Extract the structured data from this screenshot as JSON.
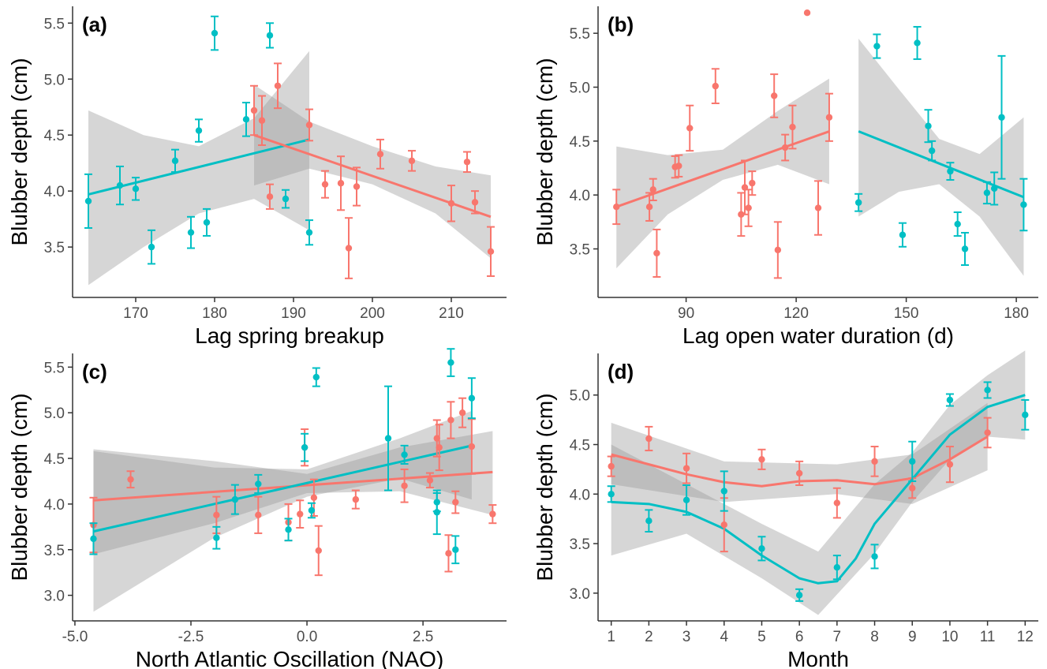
{
  "colors": {
    "red": "#f8766d",
    "teal": "#00bfc4",
    "band": "#999999",
    "axis": "#333333"
  },
  "chart_data": [
    {
      "id": "a",
      "type": "scatter",
      "panel_label": "(a)",
      "xlabel": "Lag spring breakup",
      "ylabel": "Blubber depth (cm)",
      "xlim": [
        162,
        217
      ],
      "ylim": [
        3.05,
        5.65
      ],
      "xticks": [
        170,
        180,
        190,
        200,
        210
      ],
      "yticks": [
        3.5,
        4.0,
        4.5,
        5.0,
        5.5
      ],
      "grid": false,
      "series": [
        {
          "color": "teal",
          "points": [
            [
              164,
              3.91,
              0.24
            ],
            [
              168,
              4.05,
              0.17
            ],
            [
              170,
              4.02,
              0.1
            ],
            [
              172,
              3.5,
              0.15
            ],
            [
              175,
              4.27,
              0.1
            ],
            [
              177,
              3.63,
              0.14
            ],
            [
              178,
              4.54,
              0.1
            ],
            [
              179,
              3.72,
              0.12
            ],
            [
              180,
              5.41,
              0.15
            ],
            [
              184,
              4.64,
              0.15
            ],
            [
              187,
              5.39,
              0.11
            ],
            [
              189,
              3.93,
              0.08
            ],
            [
              192,
              3.63,
              0.11
            ]
          ],
          "fit": [
            [
              164,
              3.97
            ],
            [
              192,
              4.46
            ]
          ],
          "band": [
            [
              164,
              3.16,
              4.72
            ],
            [
              171,
              3.5,
              4.5
            ],
            [
              178,
              3.8,
              4.4
            ],
            [
              185,
              3.93,
              4.65
            ],
            [
              192,
              3.65,
              5.25
            ]
          ]
        },
        {
          "color": "red",
          "points": [
            [
              185,
              4.72,
              0.22
            ],
            [
              186,
              4.63,
              0.22
            ],
            [
              187,
              3.95,
              0.11
            ],
            [
              188,
              4.94,
              0.2
            ],
            [
              192,
              4.59,
              0.14
            ],
            [
              194,
              4.06,
              0.12
            ],
            [
              196,
              4.07,
              0.24
            ],
            [
              197,
              3.49,
              0.27
            ],
            [
              198,
              4.04,
              0.17
            ],
            [
              201,
              4.33,
              0.13
            ],
            [
              205,
              4.27,
              0.09
            ],
            [
              210,
              3.89,
              0.16
            ],
            [
              212,
              4.26,
              0.09
            ],
            [
              213,
              3.9,
              0.1
            ],
            [
              215,
              3.46,
              0.22
            ]
          ],
          "fit": [
            [
              185,
              4.5
            ],
            [
              215,
              3.77
            ]
          ],
          "band": [
            [
              185,
              4.05,
              4.95
            ],
            [
              192,
              4.2,
              4.62
            ],
            [
              200,
              4.06,
              4.4
            ],
            [
              208,
              3.8,
              4.22
            ],
            [
              215,
              3.4,
              4.14
            ]
          ]
        }
      ]
    },
    {
      "id": "b",
      "type": "scatter",
      "panel_label": "(b)",
      "xlabel": "Lag open water duration (d)",
      "ylabel": "Blubber depth (cm)",
      "xlim": [
        66,
        186
      ],
      "ylim": [
        3.05,
        5.75
      ],
      "xticks": [
        90,
        120,
        150,
        180
      ],
      "yticks": [
        3.5,
        4.0,
        4.5,
        5.0,
        5.5
      ],
      "grid": false,
      "series": [
        {
          "color": "red",
          "points": [
            [
              71,
              3.89,
              0.16
            ],
            [
              80,
              3.89,
              0.13
            ],
            [
              81,
              4.05,
              0.1
            ],
            [
              82,
              3.46,
              0.22
            ],
            [
              87,
              4.26,
              0.1
            ],
            [
              88,
              4.27,
              0.1
            ],
            [
              91,
              4.62,
              0.21
            ],
            [
              98,
              5.01,
              0.16
            ],
            [
              105,
              3.82,
              0.2
            ],
            [
              106,
              4.07,
              0.25
            ],
            [
              107,
              3.88,
              0.17
            ],
            [
              108,
              4.11,
              0.11
            ],
            [
              114,
              4.92,
              0.2
            ],
            [
              115,
              3.49,
              0.26
            ],
            [
              117,
              4.44,
              0.12
            ],
            [
              119,
              4.63,
              0.2
            ],
            [
              123,
              5.69,
              0
            ],
            [
              126,
              3.88,
              0.25
            ],
            [
              129,
              4.72,
              0.22
            ]
          ],
          "fit": [
            [
              71,
              3.89
            ],
            [
              129,
              4.59
            ]
          ],
          "band": [
            [
              71,
              3.32,
              4.45
            ],
            [
              85,
              3.82,
              4.37
            ],
            [
              100,
              4.14,
              4.42
            ],
            [
              115,
              4.28,
              4.78
            ],
            [
              129,
              4.1,
              5.08
            ]
          ]
        },
        {
          "color": "teal",
          "points": [
            [
              137,
              3.93,
              0.08
            ],
            [
              142,
              5.38,
              0.11
            ],
            [
              149,
              3.63,
              0.11
            ],
            [
              153,
              5.41,
              0.15
            ],
            [
              156,
              4.64,
              0.15
            ],
            [
              157,
              4.41,
              0.09
            ],
            [
              162,
              4.22,
              0.08
            ],
            [
              164,
              3.73,
              0.11
            ],
            [
              166,
              3.5,
              0.15
            ],
            [
              172,
              4.02,
              0.1
            ],
            [
              174,
              4.06,
              0.15
            ],
            [
              176,
              4.72,
              0.57
            ],
            [
              182,
              3.91,
              0.24
            ]
          ],
          "fit": [
            [
              137,
              4.59
            ],
            [
              182,
              3.98
            ]
          ],
          "band": [
            [
              137,
              3.8,
              5.45
            ],
            [
              148,
              4.03,
              4.98
            ],
            [
              159,
              4.1,
              4.52
            ],
            [
              170,
              3.8,
              4.38
            ],
            [
              182,
              3.25,
              4.72
            ]
          ]
        }
      ]
    },
    {
      "id": "c",
      "type": "scatter",
      "panel_label": "(c)",
      "xlabel": "North Atlantic Oscillation (NAO)",
      "ylabel": "Blubber depth (cm)",
      "xlim": [
        -5.05,
        4.3
      ],
      "ylim": [
        2.72,
        5.65
      ],
      "xticks": [
        -5.0,
        -2.5,
        0.0,
        2.5
      ],
      "yticks": [
        3.0,
        3.5,
        4.0,
        4.5,
        5.0,
        5.5
      ],
      "grid": false,
      "series": [
        {
          "color": "red",
          "points": [
            [
              -4.6,
              3.77,
              0.3
            ],
            [
              -3.8,
              4.27,
              0.09
            ],
            [
              -1.95,
              3.88,
              0.2
            ],
            [
              -1.05,
              3.88,
              0.2
            ],
            [
              -0.4,
              3.8,
              0.2
            ],
            [
              -0.15,
              3.89,
              0.15
            ],
            [
              -0.05,
              4.62,
              0.2
            ],
            [
              0.15,
              4.07,
              0.2
            ],
            [
              0.25,
              3.49,
              0.27
            ],
            [
              1.05,
              4.05,
              0.1
            ],
            [
              2.1,
              4.2,
              0.18
            ],
            [
              2.65,
              4.26,
              0.08
            ],
            [
              2.8,
              4.72,
              0.2
            ],
            [
              2.85,
              4.62,
              0.25
            ],
            [
              3.05,
              3.46,
              0.2
            ],
            [
              3.1,
              4.92,
              0.2
            ],
            [
              3.2,
              4.02,
              0.12
            ],
            [
              3.35,
              5.0,
              0.16
            ],
            [
              3.55,
              4.63,
              0.3
            ],
            [
              4.0,
              3.89,
              0.1
            ]
          ],
          "fit": [
            [
              -4.6,
              4.04
            ],
            [
              4.0,
              4.35
            ]
          ],
          "band": [
            [
              -4.6,
              3.45,
              4.6
            ],
            [
              -2.0,
              3.79,
              4.47
            ],
            [
              0.0,
              4.12,
              4.33
            ],
            [
              2.0,
              4.14,
              4.62
            ],
            [
              4.0,
              3.88,
              4.8
            ]
          ]
        },
        {
          "color": "teal",
          "points": [
            [
              -4.6,
              3.62,
              0.17
            ],
            [
              -1.95,
              3.63,
              0.12
            ],
            [
              -1.55,
              4.05,
              0.16
            ],
            [
              -1.05,
              4.22,
              0.1
            ],
            [
              -0.4,
              3.72,
              0.12
            ],
            [
              -0.05,
              4.62,
              0.15
            ],
            [
              0.1,
              3.93,
              0.08
            ],
            [
              0.2,
              5.39,
              0.1
            ],
            [
              1.75,
              4.72,
              0.57
            ],
            [
              2.1,
              4.54,
              0.1
            ],
            [
              2.8,
              4.02,
              0.1
            ],
            [
              2.8,
              3.91,
              0.24
            ],
            [
              3.1,
              5.55,
              0.15
            ],
            [
              3.2,
              3.5,
              0.15
            ],
            [
              3.55,
              5.16,
              0.22
            ]
          ],
          "fit": [
            [
              -4.6,
              3.7
            ],
            [
              3.55,
              4.64
            ]
          ],
          "band": [
            [
              -4.6,
              2.82,
              4.58
            ],
            [
              -2.0,
              3.63,
              4.4
            ],
            [
              0.0,
              4.08,
              4.38
            ],
            [
              2.0,
              4.28,
              4.72
            ],
            [
              3.55,
              4.05,
              5.02
            ]
          ]
        }
      ]
    },
    {
      "id": "d",
      "type": "line",
      "panel_label": "(d)",
      "xlabel": "Month",
      "ylabel": "Blubber depth (cm)",
      "xlim": [
        0.65,
        12.35
      ],
      "ylim": [
        2.72,
        5.42
      ],
      "xticks": [
        1,
        2,
        3,
        4,
        5,
        6,
        7,
        8,
        9,
        10,
        11,
        12
      ],
      "yticks": [
        3.0,
        3.5,
        4.0,
        4.5,
        5.0
      ],
      "grid": false,
      "series": [
        {
          "color": "red",
          "points": [
            [
              1,
              4.28,
              0.1
            ],
            [
              2,
              4.56,
              0.12
            ],
            [
              3,
              4.26,
              0.15
            ],
            [
              4,
              3.69,
              0.27
            ],
            [
              5,
              4.35,
              0.1
            ],
            [
              6,
              4.21,
              0.12
            ],
            [
              7,
              3.91,
              0.15
            ],
            [
              8,
              4.33,
              0.15
            ],
            [
              9,
              4.06,
              0.1
            ],
            [
              10,
              4.3,
              0.18
            ],
            [
              11,
              4.62,
              0.15
            ]
          ],
          "fit": [
            [
              1,
              4.4
            ],
            [
              2,
              4.3
            ],
            [
              3,
              4.2
            ],
            [
              4,
              4.12
            ],
            [
              5,
              4.08
            ],
            [
              6,
              4.13
            ],
            [
              7,
              4.14
            ],
            [
              8,
              4.1
            ],
            [
              9,
              4.16
            ],
            [
              10,
              4.35
            ],
            [
              11,
              4.58
            ]
          ],
          "band": [
            [
              1,
              4.1,
              4.72
            ],
            [
              4,
              3.92,
              4.33
            ],
            [
              7,
              4.0,
              4.3
            ],
            [
              9,
              3.9,
              4.4
            ],
            [
              11,
              4.24,
              4.92
            ]
          ]
        },
        {
          "color": "teal",
          "points": [
            [
              1,
              4.0,
              0.08
            ],
            [
              2,
              3.73,
              0.11
            ],
            [
              3,
              3.94,
              0.15
            ],
            [
              4,
              4.03,
              0.2
            ],
            [
              5,
              3.45,
              0.12
            ],
            [
              6,
              2.98,
              0.06
            ],
            [
              7,
              3.26,
              0.12
            ],
            [
              8,
              3.37,
              0.12
            ],
            [
              9,
              4.33,
              0.2
            ],
            [
              10,
              4.95,
              0.06
            ],
            [
              11,
              5.05,
              0.08
            ],
            [
              12,
              4.8,
              0.15
            ]
          ],
          "fit": [
            [
              1,
              3.92
            ],
            [
              2,
              3.9
            ],
            [
              3,
              3.82
            ],
            [
              4,
              3.65
            ],
            [
              5,
              3.38
            ],
            [
              6,
              3.15
            ],
            [
              6.5,
              3.1
            ],
            [
              7,
              3.12
            ],
            [
              7.5,
              3.35
            ],
            [
              8,
              3.7
            ],
            [
              9,
              4.15
            ],
            [
              10,
              4.6
            ],
            [
              11,
              4.88
            ],
            [
              12,
              5.0
            ]
          ],
          "band": [
            [
              1,
              3.38,
              4.5
            ],
            [
              3,
              3.6,
              4.1
            ],
            [
              5,
              3.15,
              3.7
            ],
            [
              6.5,
              2.78,
              3.42
            ],
            [
              8,
              3.4,
              4.1
            ],
            [
              9,
              3.92,
              4.42
            ],
            [
              10,
              4.35,
              4.9
            ],
            [
              11,
              4.58,
              5.2
            ],
            [
              12,
              4.55,
              5.45
            ]
          ]
        }
      ]
    }
  ]
}
